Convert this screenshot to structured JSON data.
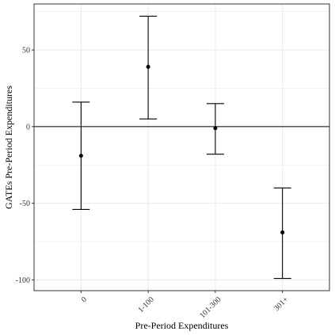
{
  "chart_data": {
    "type": "scatter",
    "title": "",
    "xlabel": "Pre-Period Expenditures",
    "ylabel": "GATEs Pre-Period Expenditures",
    "categories": [
      "0",
      "1-100",
      "101-300",
      "301+"
    ],
    "points": [
      {
        "category": "0",
        "estimate": -19,
        "lower": -54,
        "upper": 16
      },
      {
        "category": "1-100",
        "estimate": 39,
        "lower": 5,
        "upper": 72
      },
      {
        "category": "101-300",
        "estimate": -1,
        "lower": -18,
        "upper": 15
      },
      {
        "category": "301+",
        "estimate": -69,
        "lower": -99,
        "upper": -40
      }
    ],
    "yticks": [
      -100,
      -50,
      0,
      50
    ],
    "ylim": [
      -107,
      80
    ],
    "reference_line": 0,
    "grid": true,
    "x_tick_rotation": "45 degrees",
    "colors": {
      "marks": "#000000",
      "grid": "#ebebeb",
      "panel_border": "#333333"
    }
  }
}
